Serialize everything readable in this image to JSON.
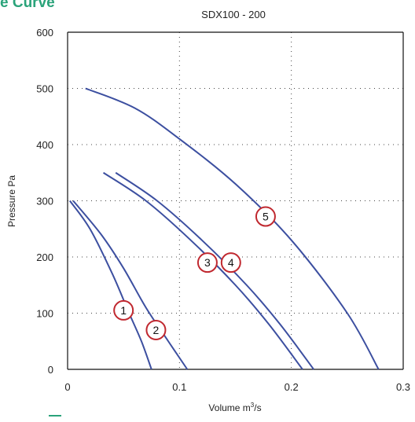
{
  "header": {
    "title": "e Curve"
  },
  "chart_data": {
    "type": "line",
    "title": "SDX100 - 200",
    "xlabel_prefix": "Volume m",
    "xlabel_sup": "3",
    "xlabel_suffix": "/s",
    "ylabel": "Pressure Pa",
    "xlim": [
      0,
      0.3
    ],
    "ylim": [
      0,
      600
    ],
    "x_ticks": [
      0,
      0.1,
      0.2,
      0.3
    ],
    "x_tick_labels": [
      "0",
      "0.1",
      "0.2",
      "0.3"
    ],
    "y_ticks": [
      0,
      100,
      200,
      300,
      400,
      500,
      600
    ],
    "y_tick_labels": [
      "0",
      "100",
      "200",
      "300",
      "400",
      "500",
      "600"
    ],
    "grid": "dotted",
    "line_color": "#3c4fa0",
    "marker_color": "#c0282f",
    "series": [
      {
        "label": "1",
        "x": [
          0.002,
          0.02,
          0.04,
          0.055,
          0.066,
          0.075
        ],
        "y": [
          300,
          250,
          170,
          100,
          50,
          0
        ],
        "marker": [
          0.05,
          105
        ]
      },
      {
        "label": "2",
        "x": [
          0.005,
          0.03,
          0.05,
          0.07,
          0.09,
          0.107
        ],
        "y": [
          300,
          240,
          180,
          110,
          50,
          0
        ],
        "marker": [
          0.079,
          70
        ]
      },
      {
        "label": "3",
        "x": [
          0.032,
          0.07,
          0.11,
          0.15,
          0.18,
          0.21
        ],
        "y": [
          350,
          300,
          230,
          150,
          80,
          0
        ],
        "marker": [
          0.125,
          190
        ]
      },
      {
        "label": "4",
        "x": [
          0.043,
          0.08,
          0.12,
          0.16,
          0.19,
          0.22
        ],
        "y": [
          350,
          300,
          230,
          150,
          80,
          0
        ],
        "marker": [
          0.146,
          190
        ]
      },
      {
        "label": "5",
        "x": [
          0.016,
          0.06,
          0.1,
          0.15,
          0.2,
          0.25,
          0.278
        ],
        "y": [
          500,
          465,
          410,
          330,
          230,
          100,
          0
        ],
        "marker": [
          0.177,
          272
        ]
      }
    ]
  }
}
